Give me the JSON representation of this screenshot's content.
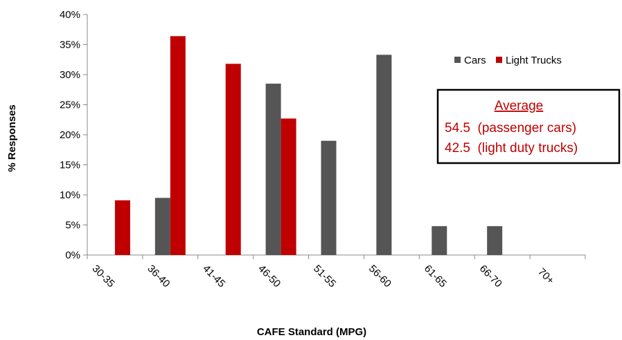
{
  "chart_data": {
    "type": "bar",
    "categories": [
      "30-35",
      "36-40",
      "41-45",
      "46-50",
      "51-55",
      "56-60",
      "61-65",
      "66-70",
      "70+"
    ],
    "series": [
      {
        "name": "Cars",
        "color": "#555555",
        "values": [
          0,
          9.5,
          0,
          28.5,
          19,
          33.3,
          4.8,
          4.8,
          0
        ]
      },
      {
        "name": "Light Trucks",
        "color": "#c00000",
        "values": [
          9.1,
          36.4,
          31.8,
          22.7,
          0,
          0,
          0,
          0,
          0
        ]
      }
    ],
    "xlabel": "CAFE Standard (MPG)",
    "ylabel": "% Responses",
    "ylim": [
      0,
      40
    ],
    "yticks": [
      "0%",
      "5%",
      "10%",
      "15%",
      "20%",
      "25%",
      "30%",
      "35%",
      "40%"
    ],
    "grid": false,
    "legend_position": "top-right",
    "annotation": {
      "heading": "Average",
      "lines": [
        "54.5  (passenger cars)",
        "42.5  (light duty trucks)"
      ],
      "color": "#c00000"
    }
  }
}
